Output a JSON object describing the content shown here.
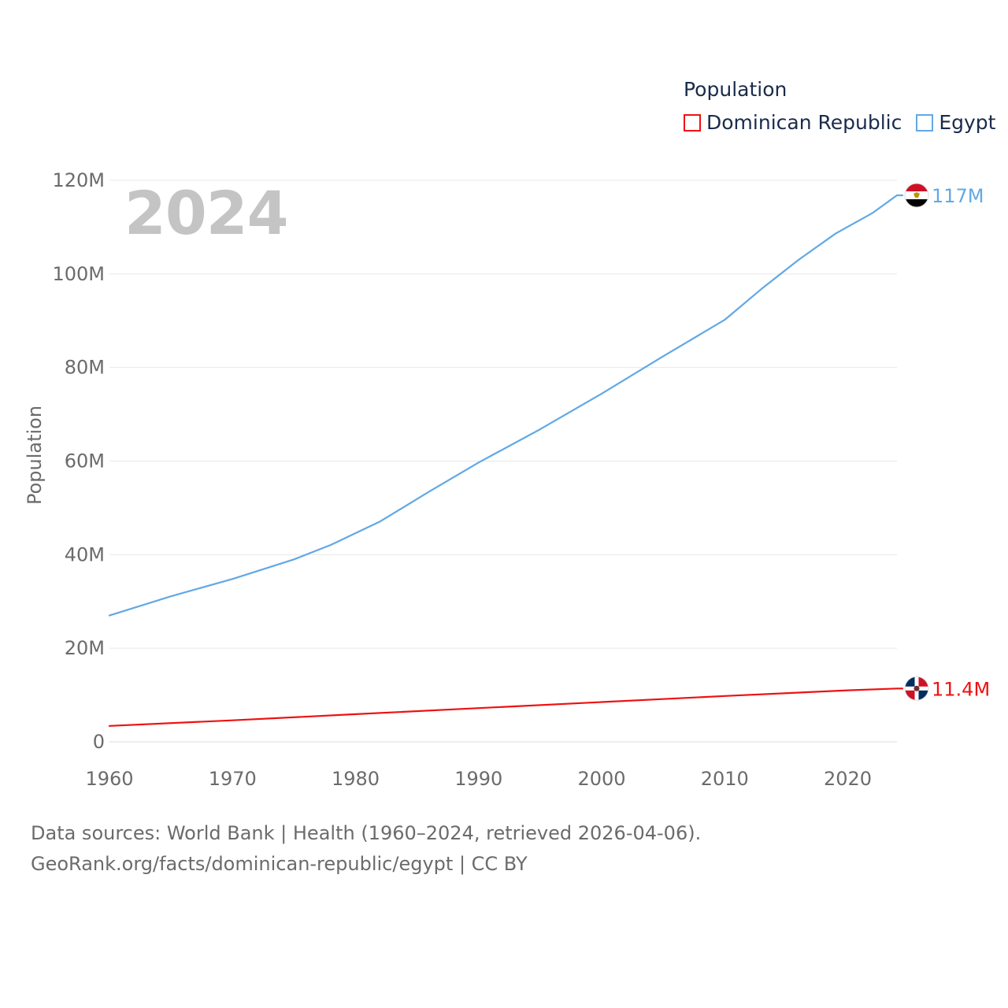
{
  "legend": {
    "title": "Population",
    "items": [
      {
        "name": "Dominican Republic",
        "color": "#ee1111"
      },
      {
        "name": "Egypt",
        "color": "#62a8e5"
      }
    ]
  },
  "year_display": "2024",
  "footer": {
    "line1": "Data sources: World Bank | Health (1960–2024, retrieved 2026-04-06).",
    "line2": "GeoRank.org/facts/dominican-republic/egypt | CC BY"
  },
  "chart_data": {
    "type": "line",
    "title": "Population",
    "xlabel": "",
    "ylabel": "Population",
    "xlim": [
      1960,
      2024
    ],
    "ylim": [
      0,
      120000000
    ],
    "x_ticks": [
      {
        "value": 1960,
        "label": "1960"
      },
      {
        "value": 1970,
        "label": "1970"
      },
      {
        "value": 1980,
        "label": "1980"
      },
      {
        "value": 1990,
        "label": "1990"
      },
      {
        "value": 2000,
        "label": "2000"
      },
      {
        "value": 2010,
        "label": "2010"
      },
      {
        "value": 2020,
        "label": "2020"
      }
    ],
    "y_ticks": [
      {
        "value": 0,
        "label": "0"
      },
      {
        "value": 20000000,
        "label": "20M"
      },
      {
        "value": 40000000,
        "label": "40M"
      },
      {
        "value": 60000000,
        "label": "60M"
      },
      {
        "value": 80000000,
        "label": "80M"
      },
      {
        "value": 100000000,
        "label": "100M"
      },
      {
        "value": 120000000,
        "label": "120M"
      }
    ],
    "grid": true,
    "series": [
      {
        "name": "Egypt",
        "color": "#62a8e5",
        "end_label": "117M",
        "flag": "egypt",
        "x": [
          1960,
          1965,
          1970,
          1975,
          1978,
          1982,
          1986,
          1990,
          1995,
          2000,
          2005,
          2010,
          2013,
          2016,
          2019,
          2022,
          2024
        ],
        "values": [
          27000000,
          31100000,
          34800000,
          39000000,
          42100000,
          47100000,
          53500000,
          59700000,
          66800000,
          74400000,
          82400000,
          90200000,
          96800000,
          103000000,
          108600000,
          113000000,
          116800000
        ]
      },
      {
        "name": "Dominican Republic",
        "color": "#ee1111",
        "end_label": "11.4M",
        "flag": "dominican-republic",
        "x": [
          1960,
          1970,
          1980,
          1990,
          2000,
          2010,
          2020,
          2024
        ],
        "values": [
          3400000,
          4600000,
          5900000,
          7200000,
          8500000,
          9800000,
          11000000,
          11400000
        ]
      }
    ]
  }
}
